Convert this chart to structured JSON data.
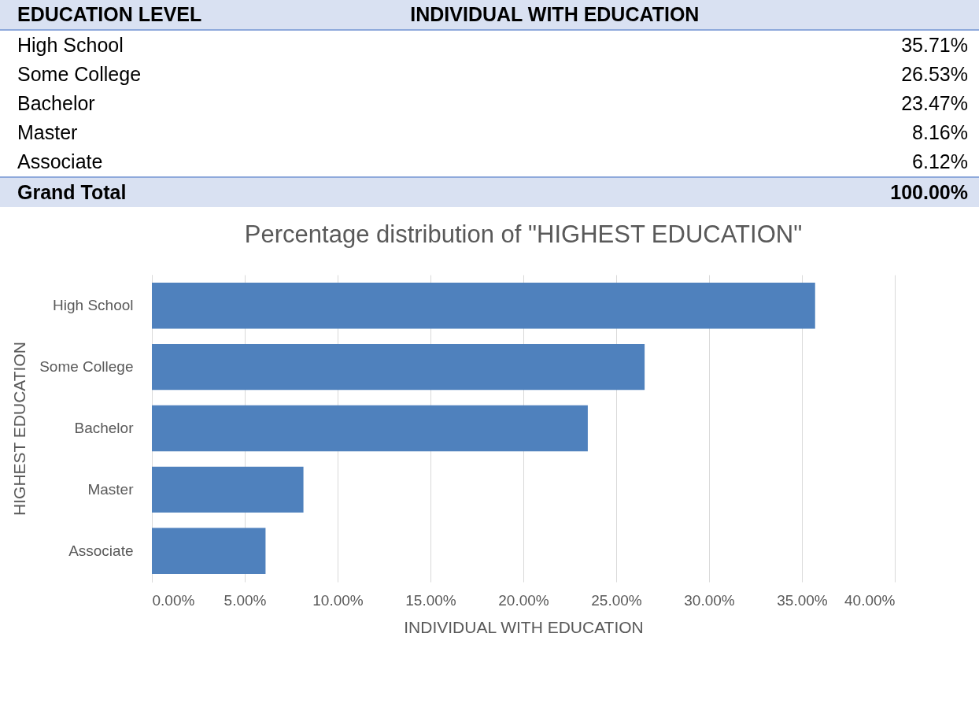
{
  "chart_data": {
    "type": "bar",
    "orientation": "horizontal",
    "title": "Percentage distribution of \"HIGHEST EDUCATION\"",
    "xlabel": "INDIVIDUAL WITH EDUCATION",
    "ylabel": "HIGHEST EDUCATION",
    "categories": [
      "High School",
      "Some College",
      "Bachelor",
      "Master",
      "Associate"
    ],
    "values": [
      35.71,
      26.53,
      23.47,
      8.16,
      6.12
    ],
    "color": "#4f81bd",
    "xlim": [
      0,
      40
    ],
    "xticks": [
      {
        "value": 0,
        "label": "0.00%"
      },
      {
        "value": 5,
        "label": "5.00%"
      },
      {
        "value": 10,
        "label": "10.00%"
      },
      {
        "value": 15,
        "label": "15.00%"
      },
      {
        "value": 20,
        "label": "20.00%"
      },
      {
        "value": 25,
        "label": "25.00%"
      },
      {
        "value": 30,
        "label": "30.00%"
      },
      {
        "value": 35,
        "label": "35.00%"
      },
      {
        "value": 40,
        "label": "40.00%"
      }
    ],
    "grid": "x",
    "annotations": [
      "EDUCATION LEVEL",
      "INDIVIDUAL WITH EDUCATION",
      "35.71%",
      "26.53%",
      "23.47%",
      "8.16%",
      "6.12%",
      "Grand Total",
      "100.00%"
    ]
  }
}
